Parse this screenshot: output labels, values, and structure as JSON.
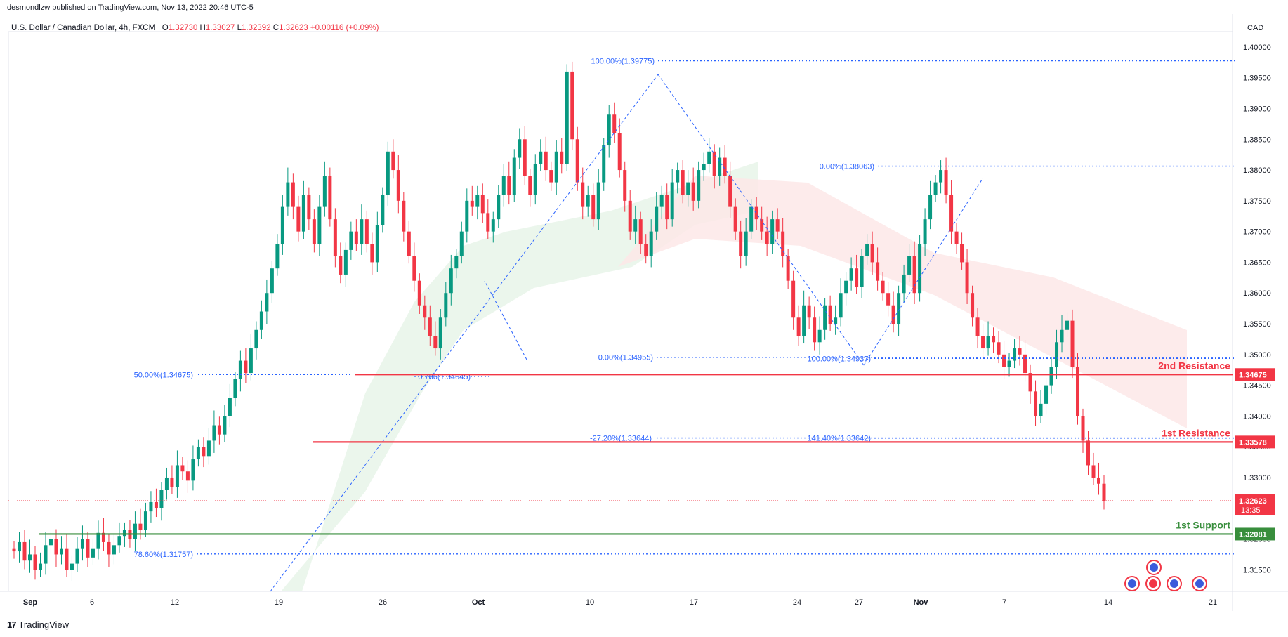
{
  "header": {
    "published": "desmondlzw published on TradingView.com, Nov 13, 2022 20:46 UTC-5"
  },
  "symbol": {
    "name": "U.S. Dollar / Canadian Dollar, 4h, FXCM",
    "o_label": "O",
    "o_value": "1.32730",
    "h_label": "H",
    "h_value": "1.33027",
    "l_label": "L",
    "l_value": "1.32392",
    "c_label": "C",
    "c_value": "1.32623",
    "change": "+0.00116 (+0.09%)"
  },
  "currency": "CAD",
  "footer": {
    "logo": "TradingView"
  },
  "colors": {
    "bull": "#089981",
    "bear": "#f23645",
    "fib": "#2962ff",
    "support": "#388e3c",
    "resistance": "#f23645",
    "cloud_bull": "#e8f5e9",
    "cloud_bear": "#fde8e8"
  },
  "chart_data": {
    "type": "candlestick",
    "ylim": [
      1.3115,
      1.4025
    ],
    "y_ticks": [
      "1.40000",
      "1.39500",
      "1.39000",
      "1.38500",
      "1.38000",
      "1.37500",
      "1.37000",
      "1.36500",
      "1.36000",
      "1.35500",
      "1.35000",
      "1.34500",
      "1.34000",
      "1.33500",
      "1.33000",
      "1.32500",
      "1.32000",
      "1.31500"
    ],
    "x_ticks": [
      "Sep",
      "6",
      "12",
      "19",
      "26",
      "Oct",
      "10",
      "17",
      "24",
      "27",
      "Nov",
      "7",
      "14",
      "21"
    ],
    "closes": [
      1.318,
      1.3195,
      1.3165,
      1.3175,
      1.315,
      1.316,
      1.319,
      1.32,
      1.3175,
      1.3185,
      1.315,
      1.316,
      1.3185,
      1.32,
      1.317,
      1.3185,
      1.321,
      1.3195,
      1.3175,
      1.319,
      1.3205,
      1.3215,
      1.32,
      1.3225,
      1.3215,
      1.3245,
      1.326,
      1.325,
      1.328,
      1.33,
      1.3285,
      1.332,
      1.331,
      1.3295,
      1.333,
      1.335,
      1.3335,
      1.336,
      1.3385,
      1.337,
      1.34,
      1.343,
      1.346,
      1.349,
      1.347,
      1.351,
      1.354,
      1.357,
      1.36,
      1.364,
      1.368,
      1.374,
      1.378,
      1.374,
      1.37,
      1.376,
      1.372,
      1.368,
      1.374,
      1.379,
      1.372,
      1.366,
      1.363,
      1.367,
      1.37,
      1.368,
      1.372,
      1.368,
      1.365,
      1.371,
      1.376,
      1.383,
      1.38,
      1.375,
      1.37,
      1.366,
      1.362,
      1.358,
      1.356,
      1.353,
      1.351,
      1.356,
      1.36,
      1.364,
      1.366,
      1.37,
      1.375,
      1.374,
      1.376,
      1.373,
      1.37,
      1.372,
      1.376,
      1.379,
      1.376,
      1.382,
      1.385,
      1.379,
      1.376,
      1.381,
      1.383,
      1.38,
      1.378,
      1.383,
      1.381,
      1.396,
      1.385,
      1.378,
      1.374,
      1.376,
      1.372,
      1.378,
      1.384,
      1.389,
      1.386,
      1.38,
      1.375,
      1.37,
      1.372,
      1.368,
      1.366,
      1.37,
      1.374,
      1.376,
      1.372,
      1.378,
      1.38,
      1.376,
      1.378,
      1.375,
      1.38,
      1.381,
      1.383,
      1.379,
      1.382,
      1.379,
      1.374,
      1.37,
      1.366,
      1.37,
      1.374,
      1.372,
      1.37,
      1.368,
      1.372,
      1.37,
      1.366,
      1.362,
      1.356,
      1.353,
      1.358,
      1.356,
      1.352,
      1.354,
      1.358,
      1.355,
      1.356,
      1.36,
      1.362,
      1.364,
      1.361,
      1.366,
      1.368,
      1.365,
      1.362,
      1.36,
      1.358,
      1.355,
      1.36,
      1.363,
      1.366,
      1.36,
      1.368,
      1.372,
      1.376,
      1.378,
      1.38,
      1.376,
      1.37,
      1.368,
      1.365,
      1.36,
      1.356,
      1.353,
      1.351,
      1.353,
      1.352,
      1.35,
      1.348,
      1.349,
      1.351,
      1.35,
      1.347,
      1.344,
      1.34,
      1.342,
      1.345,
      1.348,
      1.352,
      1.354,
      1.3555,
      1.348,
      1.34,
      1.336,
      1.332,
      1.33,
      1.329,
      1.3262
    ],
    "horizontal_levels": [
      {
        "name": "2nd Resistance",
        "value": 1.34675,
        "label": "1.34675"
      },
      {
        "name": "1st Resistance",
        "value": 1.33578,
        "label": "1.33578"
      },
      {
        "name": "1st Support",
        "value": 1.32081,
        "label": "1.32081"
      }
    ],
    "current_price": {
      "value": 1.32623,
      "label": "1.32623",
      "countdown": "13:35"
    },
    "fib_labels": [
      {
        "text": "100.00%(1.39775)",
        "value": 1.39775
      },
      {
        "text": "0.00%(1.38063)",
        "value": 1.38063
      },
      {
        "text": "0.00%(1.34955)",
        "value": 1.34955
      },
      {
        "text": "100.00%(1.34937)",
        "value": 1.34937
      },
      {
        "text": "50.00%(1.34675)",
        "value": 1.34675
      },
      {
        "text": "0.786(1.34645)",
        "value": 1.34645
      },
      {
        "text": "-27.20%(1.33644)",
        "value": 1.33644
      },
      {
        "text": "141.40%(1.33642)",
        "value": 1.33642
      },
      {
        "text": "78.60%(1.31757)",
        "value": 1.31757
      }
    ]
  }
}
